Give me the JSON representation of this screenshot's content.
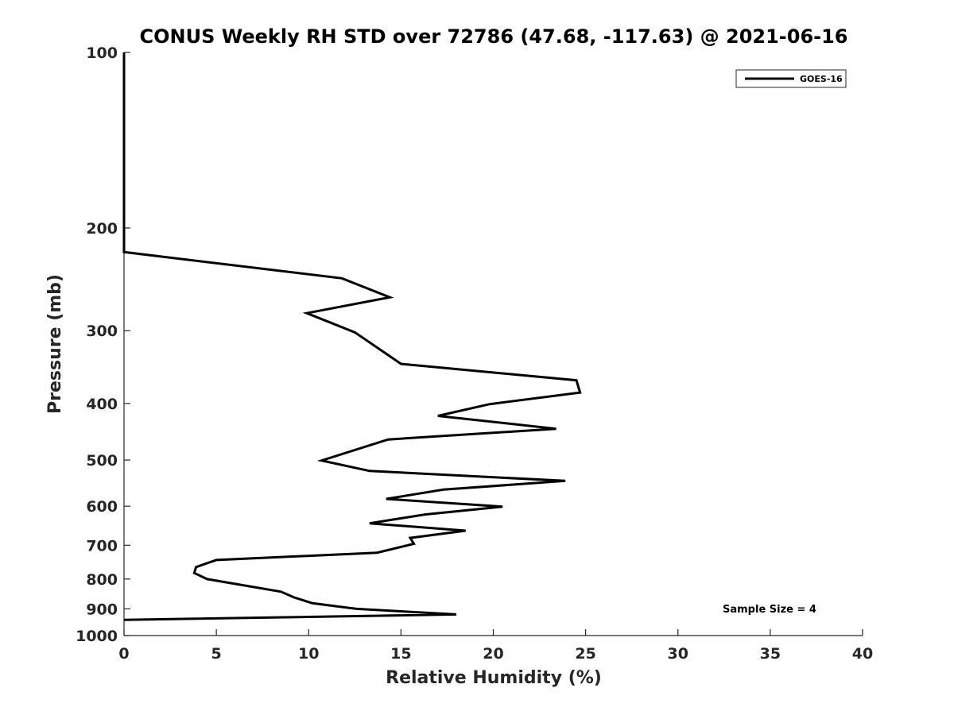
{
  "chart_data": {
    "type": "line",
    "title": "CONUS Weekly RH STD over 72786 (47.68, -117.63) @ 2021-06-16",
    "xlabel": "Relative Humidity (%)",
    "ylabel": "Pressure (mb)",
    "xlim": [
      0,
      40
    ],
    "ylim": [
      100,
      1000
    ],
    "y_scale": "log",
    "y_reversed": true,
    "grid": false,
    "legend_position": "top-right",
    "x_ticks": [
      0,
      5,
      10,
      15,
      20,
      25,
      30,
      35,
      40
    ],
    "y_ticks": [
      100,
      200,
      300,
      400,
      500,
      600,
      700,
      800,
      900,
      1000
    ],
    "series": [
      {
        "name": "GOES-16",
        "color": "#000000",
        "points": [
          {
            "rh": 0.0,
            "p": 100
          },
          {
            "rh": 0.0,
            "p": 150
          },
          {
            "rh": 0.0,
            "p": 200
          },
          {
            "rh": 0.0,
            "p": 220
          },
          {
            "rh": 11.8,
            "p": 244
          },
          {
            "rh": 14.4,
            "p": 263
          },
          {
            "rh": 9.9,
            "p": 280
          },
          {
            "rh": 12.5,
            "p": 302
          },
          {
            "rh": 15.0,
            "p": 342
          },
          {
            "rh": 24.5,
            "p": 365
          },
          {
            "rh": 24.7,
            "p": 383
          },
          {
            "rh": 19.8,
            "p": 401
          },
          {
            "rh": 17.0,
            "p": 420
          },
          {
            "rh": 23.4,
            "p": 442
          },
          {
            "rh": 14.3,
            "p": 461
          },
          {
            "rh": 10.7,
            "p": 501
          },
          {
            "rh": 13.3,
            "p": 522
          },
          {
            "rh": 23.9,
            "p": 543
          },
          {
            "rh": 17.3,
            "p": 562
          },
          {
            "rh": 14.2,
            "p": 583
          },
          {
            "rh": 20.5,
            "p": 601
          },
          {
            "rh": 16.3,
            "p": 620
          },
          {
            "rh": 13.3,
            "p": 642
          },
          {
            "rh": 18.5,
            "p": 661
          },
          {
            "rh": 15.5,
            "p": 680
          },
          {
            "rh": 15.7,
            "p": 696
          },
          {
            "rh": 13.7,
            "p": 721
          },
          {
            "rh": 5.0,
            "p": 742
          },
          {
            "rh": 3.9,
            "p": 763
          },
          {
            "rh": 3.8,
            "p": 781
          },
          {
            "rh": 4.5,
            "p": 800
          },
          {
            "rh": 8.5,
            "p": 841
          },
          {
            "rh": 9.2,
            "p": 860
          },
          {
            "rh": 10.2,
            "p": 880
          },
          {
            "rh": 12.6,
            "p": 900
          },
          {
            "rh": 18.0,
            "p": 920
          },
          {
            "rh": 0.0,
            "p": 940
          }
        ]
      }
    ],
    "legend": [
      {
        "label": "GOES-16"
      }
    ],
    "annotation": "Sample Size = 4"
  }
}
